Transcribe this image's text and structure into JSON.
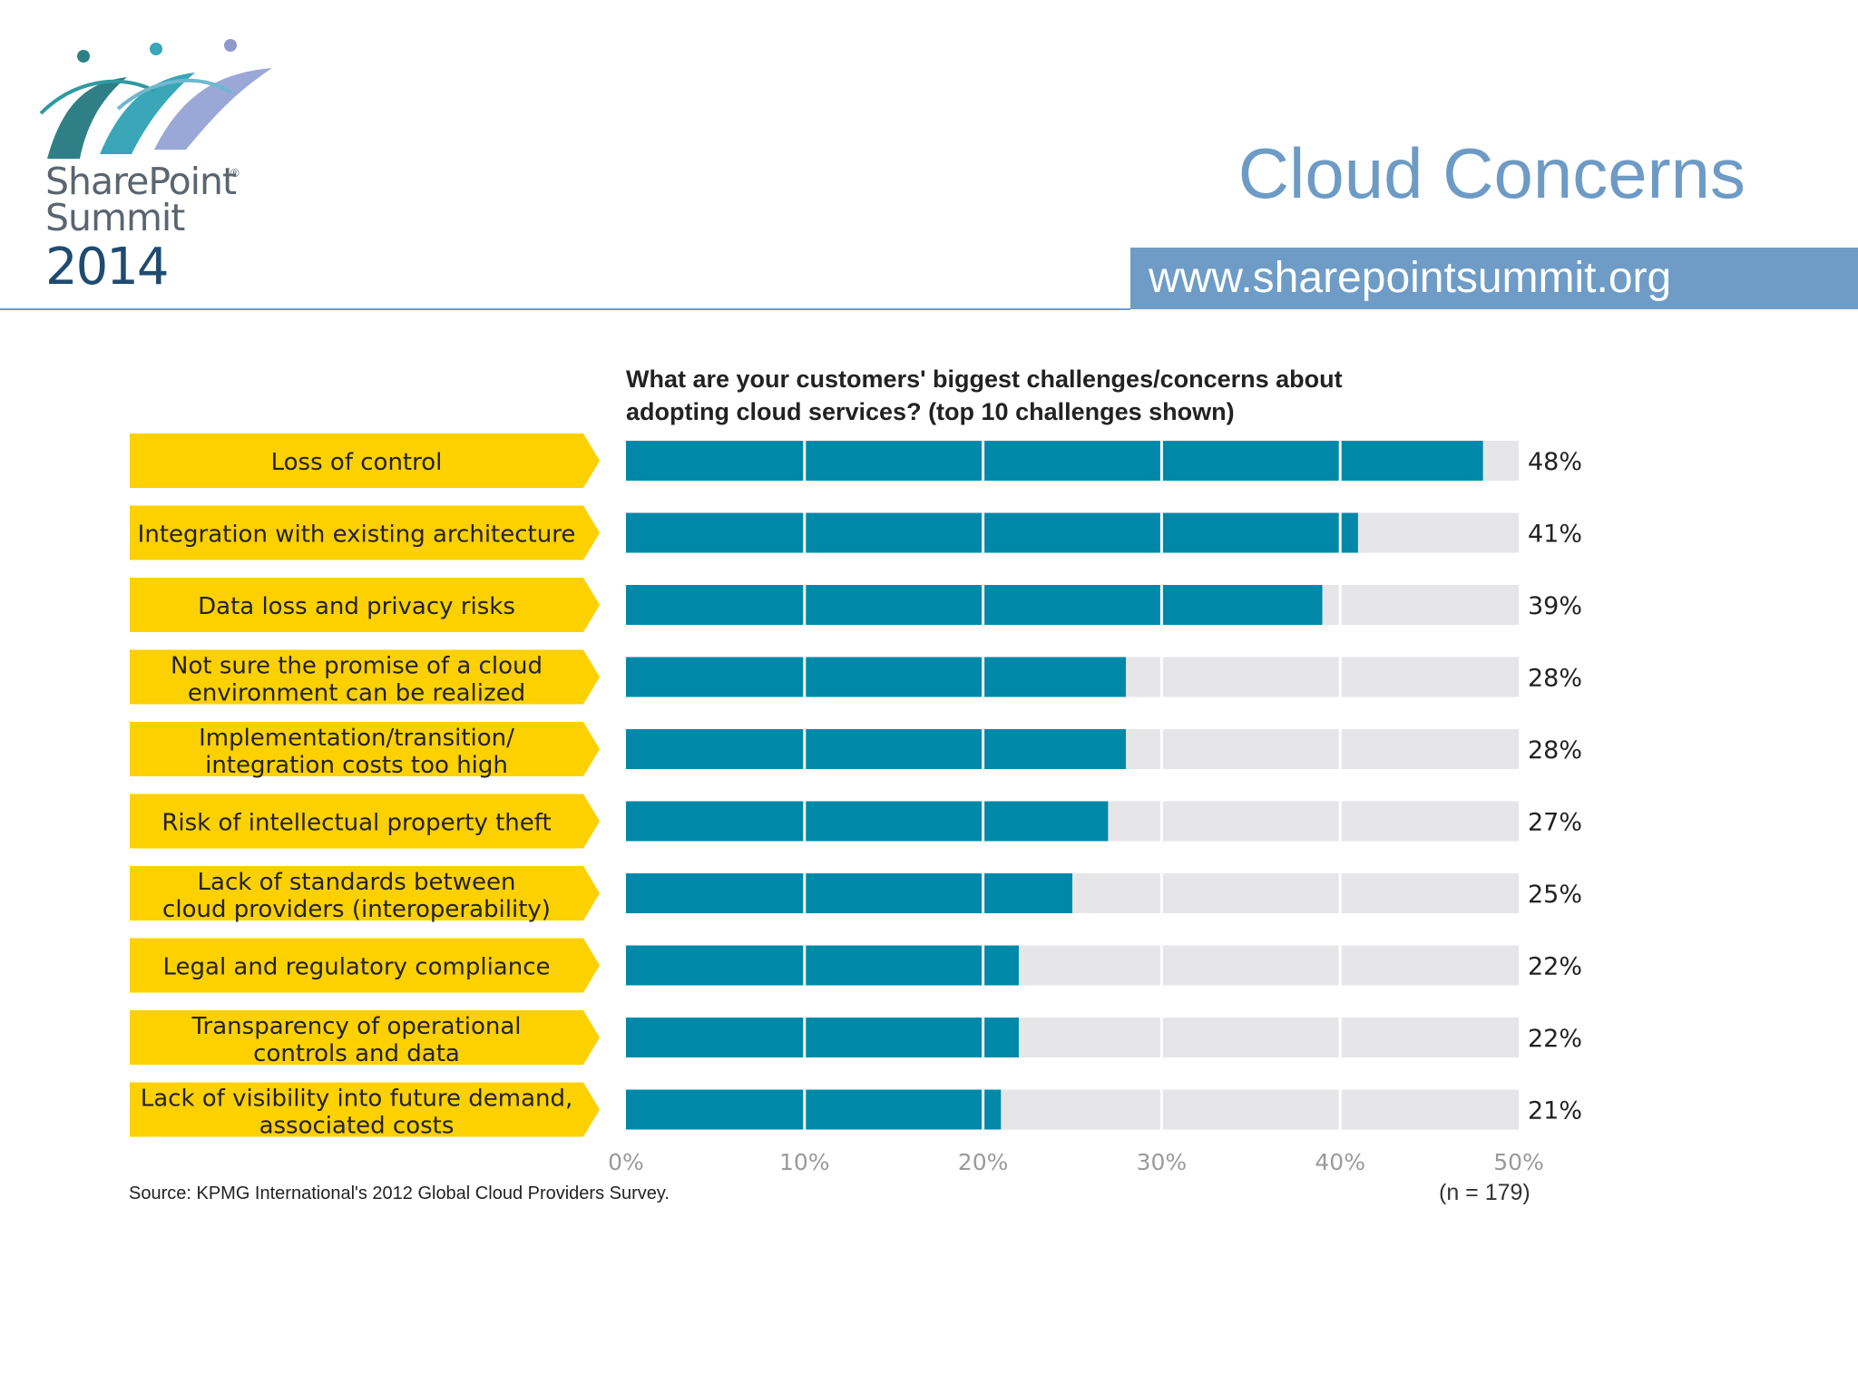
{
  "logo": {
    "brand": "SharePoint",
    "registered": "®",
    "subtitle": "Summit",
    "year": "2014"
  },
  "header": {
    "title": "Cloud Concerns",
    "url": "www.sharepointsummit.org"
  },
  "colors": {
    "bar_fill": "#0088a9",
    "bar_track": "#e6e6e8",
    "label_bg": "#fdd000",
    "accent": "#6e9cc7"
  },
  "chart_data": {
    "type": "bar",
    "orientation": "horizontal",
    "title": "What are your customers' biggest challenges/concerns about adopting cloud services? (top 10 challenges shown)",
    "categories": [
      [
        "Loss of control"
      ],
      [
        "Integration with existing architecture"
      ],
      [
        "Data loss and privacy risks"
      ],
      [
        "Not sure the promise of a cloud",
        "environment can be realized"
      ],
      [
        "Implementation/transition/",
        "integration costs too high"
      ],
      [
        "Risk of intellectual property theft"
      ],
      [
        "Lack of standards between",
        "cloud providers (interoperability)"
      ],
      [
        "Legal and regulatory compliance"
      ],
      [
        "Transparency of operational",
        "controls and data"
      ],
      [
        "Lack of visibility into future demand,",
        "associated costs"
      ]
    ],
    "values": [
      48,
      41,
      39,
      28,
      28,
      27,
      25,
      22,
      22,
      21
    ],
    "value_labels": [
      "48%",
      "41%",
      "39%",
      "28%",
      "28%",
      "27%",
      "25%",
      "22%",
      "22%",
      "21%"
    ],
    "xlim": [
      0,
      50
    ],
    "x_ticks": [
      0,
      10,
      20,
      30,
      40,
      50
    ],
    "x_tick_labels": [
      "0%",
      "10%",
      "20%",
      "30%",
      "40%",
      "50%"
    ],
    "grid": true,
    "source": "Source: KPMG International's 2012 Global Cloud Providers Survey.",
    "sample_size": "(n = 179)"
  }
}
